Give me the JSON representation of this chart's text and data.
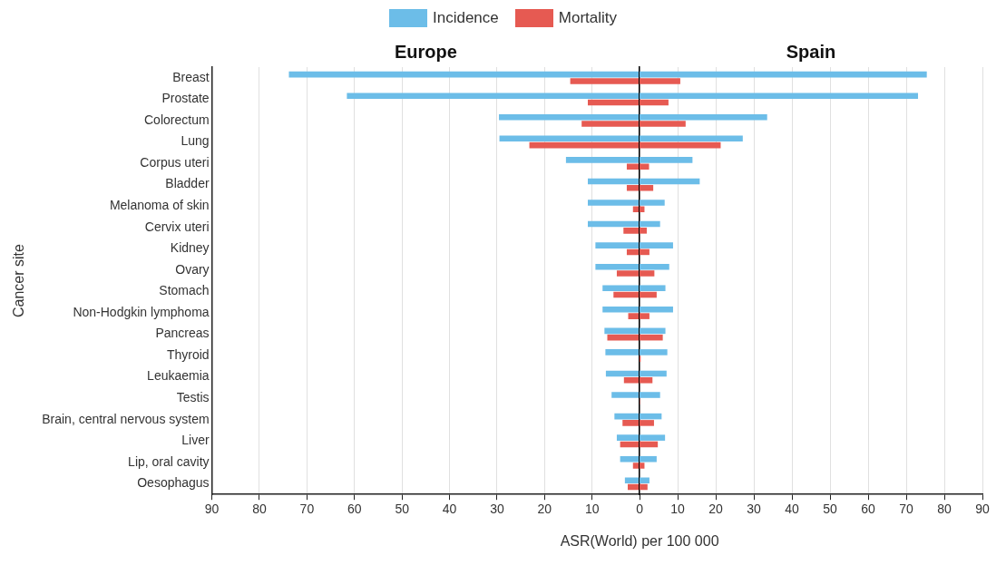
{
  "chart_data": [
    {
      "type": "bar",
      "orientation": "horizontal",
      "title": "Europe",
      "xlabel": "ASR(World) per 100 000",
      "ylabel": "Cancer site",
      "legend": "top",
      "grid": "x",
      "categories": [
        "Breast",
        "Prostate",
        "Colorectum",
        "Lung",
        "Corpus uteri",
        "Bladder",
        "Melanoma of skin",
        "Cervix uteri",
        "Kidney",
        "Ovary",
        "Stomach",
        "Non-Hodgkin lymphoma",
        "Pancreas",
        "Thyroid",
        "Leukaemia",
        "Testis",
        "Brain, central nervous system",
        "Liver",
        "Lip, oral cavity",
        "Oesophagus"
      ],
      "series": [
        {
          "name": "Incidence",
          "color": "#6cbde8",
          "values": [
            73.8,
            61.6,
            29.6,
            29.5,
            15.5,
            10.9,
            10.9,
            10.9,
            9.3,
            9.3,
            7.8,
            7.8,
            7.4,
            7.2,
            7.1,
            5.9,
            5.3,
            4.8,
            4.1,
            3.1
          ]
        },
        {
          "name": "Mortality",
          "color": "#e65a52",
          "values": [
            14.6,
            10.9,
            12.2,
            23.2,
            2.7,
            2.7,
            1.4,
            3.4,
            2.7,
            4.8,
            5.5,
            2.4,
            6.8,
            0.1,
            3.3,
            0.1,
            3.6,
            4.1,
            1.4,
            2.5
          ]
        }
      ],
      "xlim": [
        90,
        0
      ],
      "xticks": [
        90,
        80,
        70,
        60,
        50,
        40,
        30,
        20,
        10,
        0
      ]
    },
    {
      "type": "bar",
      "orientation": "horizontal",
      "title": "Spain",
      "grid": "x",
      "tick_labels": "x",
      "categories": [
        null,
        null,
        null,
        null,
        null,
        null,
        null,
        null,
        null,
        null,
        null,
        null,
        null,
        null,
        null,
        null,
        null,
        null,
        null,
        null
      ],
      "series": [
        {
          "color": "#6cbde8",
          "values": [
            75.4,
            73.1,
            33.5,
            27.1,
            13.9,
            15.8,
            6.6,
            5.4,
            8.8,
            7.8,
            6.8,
            8.8,
            6.8,
            7.3,
            7.1,
            5.4,
            5.8,
            6.7,
            4.5,
            2.6
          ]
        },
        {
          "color": "#e65a52",
          "values": [
            10.7,
            7.6,
            12.1,
            21.3,
            2.5,
            3.6,
            1.3,
            1.9,
            2.6,
            3.9,
            4.5,
            2.6,
            6.1,
            0.3,
            3.4,
            0.1,
            3.8,
            4.8,
            1.3,
            2.1
          ]
        }
      ],
      "xlim": [
        0,
        90
      ],
      "xticks": [
        10,
        20,
        30,
        40,
        50,
        60,
        70,
        80,
        90
      ]
    }
  ]
}
